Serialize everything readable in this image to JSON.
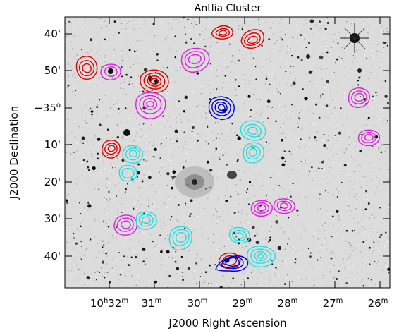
{
  "figure": {
    "title": "Antlia Cluster",
    "xlabel": "J2000 Right Ascension",
    "ylabel": "J2000 Declination",
    "x_ticks": [
      {
        "h": "10",
        "hu": "h",
        "m": "32",
        "mu": "m"
      },
      {
        "h": "",
        "hu": "",
        "m": "31",
        "mu": "m"
      },
      {
        "h": "",
        "hu": "",
        "m": "30",
        "mu": "m"
      },
      {
        "h": "",
        "hu": "",
        "m": "29",
        "mu": "m"
      },
      {
        "h": "",
        "hu": "",
        "m": "28",
        "mu": "m"
      },
      {
        "h": "",
        "hu": "",
        "m": "27",
        "mu": "m"
      },
      {
        "h": "",
        "hu": "",
        "m": "26",
        "mu": "m"
      }
    ],
    "y_ticks": [
      {
        "label": "40'",
        "super": ""
      },
      {
        "label": "50'",
        "super": ""
      },
      {
        "label": "−35",
        "super": "o"
      },
      {
        "label": "10'",
        "super": ""
      },
      {
        "label": "20'",
        "super": ""
      },
      {
        "label": "30'",
        "super": ""
      },
      {
        "label": "40'",
        "super": ""
      }
    ],
    "background": "optical sky image (inverted greyscale star field)",
    "contour_colors": {
      "red": "#e00000",
      "magenta": "#e020e0",
      "cyan": "#20e0e0",
      "blue": "#0000d0"
    }
  }
}
